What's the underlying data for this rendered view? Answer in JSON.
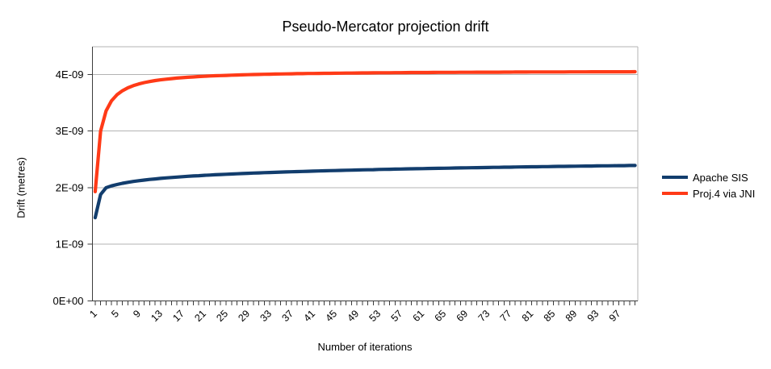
{
  "colors": {
    "background": "#ffffff",
    "grid": "#b3b3b3",
    "plot_border": "#b3b3b3",
    "axis": "#3c3c3c",
    "text": "#000000",
    "series_apache_sis": "#123d6d",
    "series_proj4": "#ff3a17"
  },
  "chart_data": {
    "type": "line",
    "title": "Pseudo-Mercator projection drift",
    "xlabel": "Number of iterations",
    "ylabel": "Drift (metres)",
    "grid": "horizontal",
    "legend_position": "right",
    "y_unit": "metres",
    "y_value_scale": 1e-09,
    "ylim_1e9": [
      0,
      4.49
    ],
    "y_tick_values_1e9": [
      0,
      1,
      2,
      3,
      4
    ],
    "y_tick_labels": [
      "0E+00",
      "1E-09",
      "2E-09",
      "3E-09",
      "4E-09"
    ],
    "x_tick_step": 4,
    "x_tick_labels": [
      "1",
      "5",
      "9",
      "13",
      "17",
      "21",
      "25",
      "29",
      "33",
      "37",
      "41",
      "45",
      "49",
      "53",
      "57",
      "61",
      "65",
      "69",
      "73",
      "77",
      "81",
      "85",
      "89",
      "93",
      "97"
    ],
    "x": [
      1,
      2,
      3,
      4,
      5,
      6,
      7,
      8,
      9,
      10,
      11,
      12,
      13,
      14,
      15,
      16,
      17,
      18,
      19,
      20,
      21,
      22,
      23,
      24,
      25,
      26,
      27,
      28,
      29,
      30,
      31,
      32,
      33,
      34,
      35,
      36,
      37,
      38,
      39,
      40,
      41,
      42,
      43,
      44,
      45,
      46,
      47,
      48,
      49,
      50,
      51,
      52,
      53,
      54,
      55,
      56,
      57,
      58,
      59,
      60,
      61,
      62,
      63,
      64,
      65,
      66,
      67,
      68,
      69,
      70,
      71,
      72,
      73,
      74,
      75,
      76,
      77,
      78,
      79,
      80,
      81,
      82,
      83,
      84,
      85,
      86,
      87,
      88,
      89,
      90,
      91,
      92,
      93,
      94,
      95,
      96,
      97,
      98,
      99,
      100
    ],
    "series": [
      {
        "name": "Apache SIS",
        "color": "#123d6d",
        "values_1e9": [
          1.47,
          1.88,
          2.0,
          2.032,
          2.057,
          2.078,
          2.095,
          2.11,
          2.123,
          2.135,
          2.146,
          2.155,
          2.164,
          2.173,
          2.18,
          2.187,
          2.194,
          2.201,
          2.207,
          2.212,
          2.218,
          2.223,
          2.228,
          2.233,
          2.237,
          2.242,
          2.246,
          2.25,
          2.254,
          2.258,
          2.262,
          2.265,
          2.269,
          2.272,
          2.275,
          2.278,
          2.281,
          2.284,
          2.287,
          2.29,
          2.293,
          2.296,
          2.298,
          2.301,
          2.303,
          2.306,
          2.308,
          2.31,
          2.313,
          2.315,
          2.317,
          2.319,
          2.322,
          2.324,
          2.326,
          2.328,
          2.33,
          2.332,
          2.334,
          2.336,
          2.337,
          2.339,
          2.341,
          2.343,
          2.344,
          2.346,
          2.348,
          2.35,
          2.351,
          2.353,
          2.354,
          2.356,
          2.357,
          2.359,
          2.36,
          2.362,
          2.363,
          2.365,
          2.366,
          2.368,
          2.369,
          2.37,
          2.372,
          2.373,
          2.375,
          2.376,
          2.377,
          2.378,
          2.38,
          2.381,
          2.382,
          2.383,
          2.385,
          2.386,
          2.387,
          2.388,
          2.389,
          2.39,
          2.392,
          2.393
        ]
      },
      {
        "name": "Proj.4 via JNI",
        "color": "#ff3a17",
        "values_1e9": [
          1.93,
          3.0,
          3.357,
          3.535,
          3.642,
          3.713,
          3.764,
          3.803,
          3.832,
          3.856,
          3.875,
          3.892,
          3.905,
          3.917,
          3.927,
          3.936,
          3.944,
          3.951,
          3.957,
          3.963,
          3.968,
          3.973,
          3.977,
          3.981,
          3.984,
          3.988,
          3.991,
          3.994,
          3.996,
          3.999,
          4.001,
          4.003,
          4.005,
          4.007,
          4.009,
          4.011,
          4.012,
          4.014,
          4.015,
          4.017,
          4.018,
          4.019,
          4.02,
          4.021,
          4.022,
          4.023,
          4.024,
          4.025,
          4.026,
          4.027,
          4.028,
          4.029,
          4.03,
          4.03,
          4.031,
          4.032,
          4.032,
          4.033,
          4.034,
          4.034,
          4.035,
          4.035,
          4.036,
          4.037,
          4.037,
          4.038,
          4.038,
          4.039,
          4.039,
          4.039,
          4.04,
          4.04,
          4.041,
          4.041,
          4.041,
          4.042,
          4.042,
          4.043,
          4.043,
          4.043,
          4.044,
          4.044,
          4.044,
          4.045,
          4.045,
          4.045,
          4.045,
          4.046,
          4.046,
          4.046,
          4.046,
          4.047,
          4.047,
          4.047,
          4.047,
          4.048,
          4.048,
          4.048,
          4.048,
          4.049
        ]
      }
    ]
  }
}
